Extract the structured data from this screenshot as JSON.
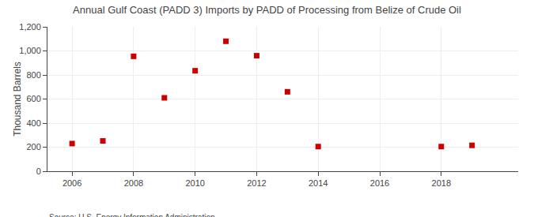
{
  "chart_data": {
    "type": "scatter",
    "title": "Annual Gulf Coast (PADD 3) Imports by PADD of Processing from Belize of Crude Oil",
    "ylabel": "Thousand Barrels",
    "annotations": [
      "Source: U.S. Energy Information Administration"
    ],
    "x": [
      2006,
      2007,
      2008,
      2009,
      2010,
      2011,
      2012,
      2013,
      2014,
      2018,
      2019
    ],
    "values": [
      230,
      252,
      955,
      610,
      835,
      1080,
      960,
      660,
      205,
      205,
      215
    ],
    "color": "#cc0000",
    "marker": "square",
    "xlim": [
      2005.2,
      2020.5
    ],
    "ylim": [
      0,
      1200
    ],
    "xticks": [
      2006,
      2008,
      2010,
      2012,
      2014,
      2016,
      2018
    ],
    "yticks": [
      0,
      200,
      400,
      600,
      800,
      {
        "value": 1000,
        "label": "1,000"
      },
      {
        "value": 1200,
        "label": "1,200"
      }
    ],
    "grid": true
  }
}
